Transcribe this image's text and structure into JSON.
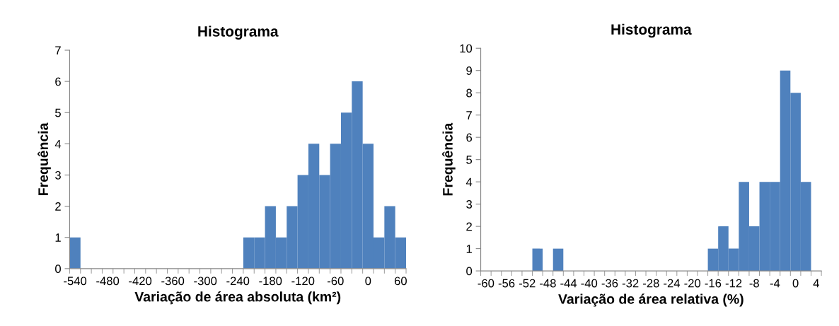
{
  "chart_data": [
    {
      "type": "histogram",
      "title": "Histograma",
      "xlabel": "Variação de área absoluta (km²)",
      "ylabel": "Frequência",
      "color": "#4f81bd",
      "bins": [
        -550,
        -530,
        -510,
        -490,
        -470,
        -450,
        -430,
        -410,
        -390,
        -370,
        -350,
        -330,
        -310,
        -290,
        -270,
        -250,
        -230,
        -210,
        -190,
        -170,
        -150,
        -130,
        -110,
        -90,
        -70,
        -50,
        -30,
        -10,
        10,
        30,
        50,
        70
      ],
      "values": [
        1,
        0,
        0,
        0,
        0,
        0,
        0,
        0,
        0,
        0,
        0,
        0,
        0,
        0,
        0,
        0,
        1,
        1,
        2,
        1,
        2,
        3,
        4,
        3,
        4,
        5,
        6,
        4,
        1,
        2,
        1
      ],
      "xlim": [
        -550,
        70
      ],
      "xticks": [
        -540,
        -480,
        -420,
        -360,
        -300,
        -240,
        -180,
        -120,
        -60,
        0,
        60
      ],
      "ylim": [
        0,
        7
      ],
      "yticks": [
        0,
        1,
        2,
        3,
        4,
        5,
        6,
        7
      ],
      "grid": false,
      "legend": false
    },
    {
      "type": "histogram",
      "title": "Histograma",
      "xlabel": "Variação de área relativa (%)",
      "ylabel": "Frequência",
      "color": "#4f81bd",
      "bins": [
        -61,
        -59,
        -57,
        -55,
        -53,
        -51,
        -49,
        -47,
        -45,
        -43,
        -41,
        -39,
        -37,
        -35,
        -33,
        -31,
        -29,
        -27,
        -25,
        -23,
        -21,
        -19,
        -17,
        -15,
        -13,
        -11,
        -9,
        -7,
        -5,
        -3,
        -1,
        1,
        3,
        5
      ],
      "values": [
        0,
        0,
        0,
        0,
        0,
        1,
        0,
        1,
        0,
        0,
        0,
        0,
        0,
        0,
        0,
        0,
        0,
        0,
        0,
        0,
        0,
        0,
        1,
        2,
        1,
        4,
        2,
        4,
        4,
        9,
        8,
        4,
        0
      ],
      "xlim": [
        -61,
        5
      ],
      "xticks": [
        -60,
        -56,
        -52,
        -48,
        -44,
        -40,
        -36,
        -32,
        -28,
        -24,
        -20,
        -16,
        -12,
        -8,
        -4,
        0,
        4
      ],
      "ylim": [
        0,
        10
      ],
      "yticks": [
        0,
        1,
        2,
        3,
        4,
        5,
        6,
        7,
        8,
        9,
        10
      ],
      "grid": false,
      "legend": false
    }
  ]
}
